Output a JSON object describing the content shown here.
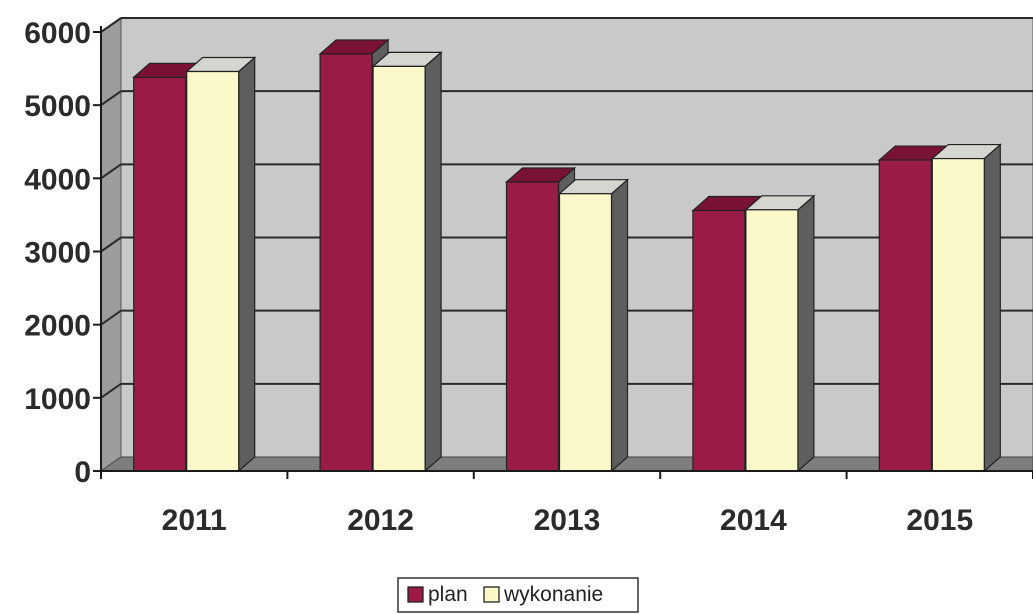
{
  "chart_data": {
    "type": "bar",
    "categories": [
      "2011",
      "2012",
      "2013",
      "2014",
      "2015"
    ],
    "series": [
      {
        "name": "plan",
        "values": [
          5380,
          5700,
          3950,
          3560,
          4250
        ],
        "color": "#9b1b47"
      },
      {
        "name": "wykonanie",
        "values": [
          5460,
          5530,
          3790,
          3570,
          4270
        ],
        "color": "#fbf8c9"
      }
    ],
    "y_ticks": [
      "0",
      "1000",
      "2000",
      "3000",
      "4000",
      "5000",
      "6000"
    ],
    "ylim": [
      0,
      6000
    ],
    "grid": true,
    "legend_position": "bottom",
    "style": "3d-clustered-column",
    "colors": {
      "plot_background": "#c9c9c9",
      "side_wall": "#9c9c9c",
      "floor": "#7e7e7e",
      "grid_line": "#2a2a2a",
      "bar_side": "#5e5e5e"
    }
  }
}
